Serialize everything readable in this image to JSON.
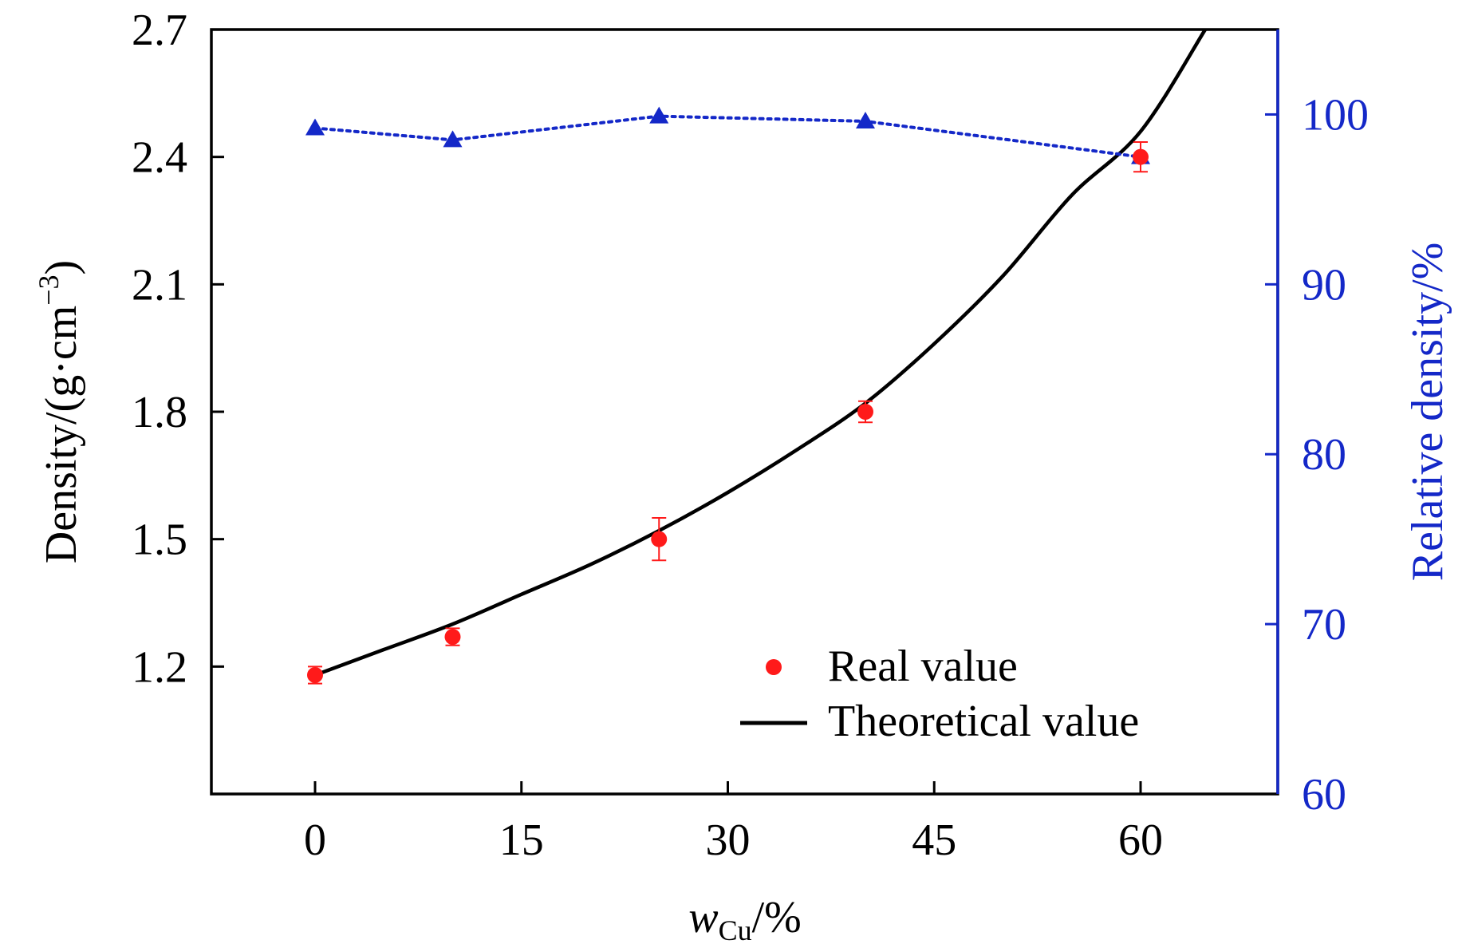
{
  "chart_data": {
    "type": "line",
    "xlabel": {
      "main": "w",
      "sub": "Cu",
      "rest": "/%"
    },
    "ylabel_left": {
      "main": "Density/(g·cm",
      "sup": "−3",
      "close": ")"
    },
    "ylabel_right": "Relative density/%",
    "xlim": [
      -7.5,
      70
    ],
    "ylim_left": [
      0.9,
      2.7
    ],
    "ylim_right": [
      60,
      105
    ],
    "x_ticks": [
      "0",
      "15",
      "30",
      "45",
      "60"
    ],
    "y_left_ticks": [
      "1.2",
      "1.5",
      "1.8",
      "2.1",
      "2.4",
      "2.7"
    ],
    "y_right_ticks": [
      "60",
      "70",
      "80",
      "90",
      "100"
    ],
    "legend_position": "bottom-right",
    "colors": {
      "real": "#ff1a1a",
      "theoretical": "#000000",
      "relative": "#1428c8",
      "axis": "#000000"
    },
    "series": [
      {
        "name": "Real value",
        "marker": "circle",
        "axis": "left",
        "x": [
          0,
          10,
          25,
          40,
          60
        ],
        "y": [
          1.18,
          1.27,
          1.5,
          1.8,
          2.4
        ],
        "err": [
          0.02,
          0.02,
          0.05,
          0.025,
          0.035
        ]
      },
      {
        "name": "Theoretical value",
        "style": "solid-line",
        "axis": "left",
        "x": [
          0,
          5,
          10,
          15,
          20,
          25,
          30,
          35,
          40,
          45,
          50,
          55,
          60,
          64.7
        ],
        "y": [
          1.18,
          1.24,
          1.3,
          1.37,
          1.44,
          1.52,
          1.61,
          1.71,
          1.82,
          1.96,
          2.12,
          2.31,
          2.46,
          2.7
        ]
      },
      {
        "axis": "right",
        "marker": "triangle",
        "style": "dotted-line",
        "x": [
          0,
          10,
          25,
          40,
          60
        ],
        "y": [
          99.2,
          98.5,
          99.9,
          99.6,
          97.5
        ]
      }
    ]
  }
}
